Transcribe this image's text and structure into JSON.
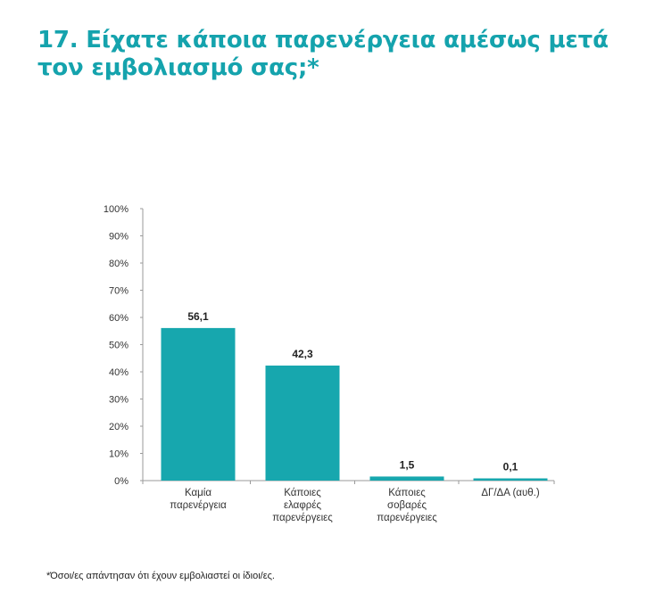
{
  "title": "17. Είχατε κάποια παρενέργεια αμέσως μετά τον εμβολιασμό σας;*",
  "footnote": "*Όσοι/ες απάντησαν ότι έχουν εμβολιαστεί οι ίδιοι/ες.",
  "chart_data": {
    "type": "bar",
    "title": "17. Είχατε κάποια παρενέργεια αμέσως μετά τον εμβολιασμό σας;*",
    "xlabel": "",
    "ylabel": "",
    "ylim": [
      0,
      100
    ],
    "yticks": [
      "0%",
      "10%",
      "20%",
      "30%",
      "40%",
      "50%",
      "60%",
      "70%",
      "80%",
      "90%",
      "100%"
    ],
    "categories": [
      [
        "Καμία",
        "παρενέργεια"
      ],
      [
        "Κάποιες",
        "ελαφρές",
        "παρενέργειες"
      ],
      [
        "Κάποιες",
        "σοβαρές",
        "παρενέργειες"
      ],
      [
        "ΔΓ/ΔΑ (αυθ.)"
      ]
    ],
    "values": [
      56.1,
      42.3,
      1.5,
      0.1
    ],
    "value_labels": [
      "56,1",
      "42,3",
      "1,5",
      "0,1"
    ],
    "bar_color": "#17a7ae",
    "grid": false,
    "legend": "none"
  },
  "colors": {
    "title": "#15a3ad",
    "bar": "#17a7ae",
    "axis": "#9a9a9a"
  }
}
